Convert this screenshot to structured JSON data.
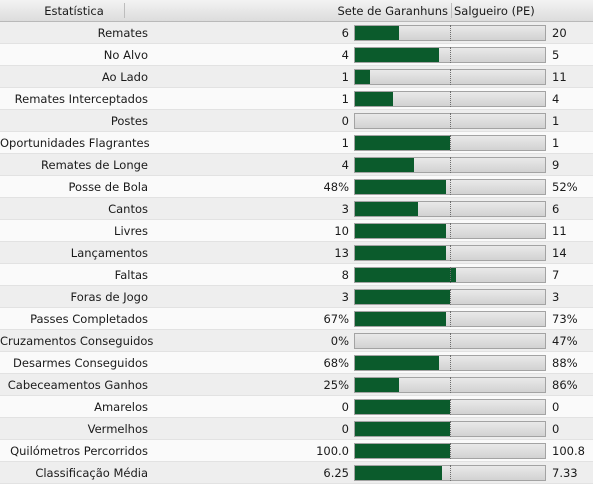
{
  "header": {
    "stat_label": "Estatística",
    "home_team": "Sete de Garanhuns",
    "away_team": "Salgueiro (PE)"
  },
  "colors": {
    "home_bar": "#0b5b2c",
    "away_bar": "#dcdcdc"
  },
  "stats": [
    {
      "label": "Remates",
      "home": "6",
      "away": "20",
      "home_share": 0.23
    },
    {
      "label": "No Alvo",
      "home": "4",
      "away": "5",
      "home_share": 0.44
    },
    {
      "label": "Ao Lado",
      "home": "1",
      "away": "11",
      "home_share": 0.08
    },
    {
      "label": "Remates Interceptados",
      "home": "1",
      "away": "4",
      "home_share": 0.2
    },
    {
      "label": "Postes",
      "home": "0",
      "away": "1",
      "home_share": 0.0
    },
    {
      "label": "Oportunidades Flagrantes",
      "home": "1",
      "away": "1",
      "home_share": 0.5
    },
    {
      "label": "Remates de Longe",
      "home": "4",
      "away": "9",
      "home_share": 0.31
    },
    {
      "label": "Posse de Bola",
      "home": "48%",
      "away": "52%",
      "home_share": 0.48
    },
    {
      "label": "Cantos",
      "home": "3",
      "away": "6",
      "home_share": 0.33
    },
    {
      "label": "Livres",
      "home": "10",
      "away": "11",
      "home_share": 0.48
    },
    {
      "label": "Lançamentos",
      "home": "13",
      "away": "14",
      "home_share": 0.48
    },
    {
      "label": "Faltas",
      "home": "8",
      "away": "7",
      "home_share": 0.53
    },
    {
      "label": "Foras de Jogo",
      "home": "3",
      "away": "3",
      "home_share": 0.5
    },
    {
      "label": "Passes Completados",
      "home": "67%",
      "away": "73%",
      "home_share": 0.48
    },
    {
      "label": "Cruzamentos Conseguidos",
      "home": "0%",
      "away": "47%",
      "home_share": 0.0
    },
    {
      "label": "Desarmes Conseguidos",
      "home": "68%",
      "away": "88%",
      "home_share": 0.44
    },
    {
      "label": "Cabeceamentos Ganhos",
      "home": "25%",
      "away": "86%",
      "home_share": 0.23
    },
    {
      "label": "Amarelos",
      "home": "0",
      "away": "0",
      "home_share": 0.5
    },
    {
      "label": "Vermelhos",
      "home": "0",
      "away": "0",
      "home_share": 0.5
    },
    {
      "label": "Quilómetros Percorridos",
      "home": "100.0",
      "away": "100.8",
      "home_share": 0.5
    },
    {
      "label": "Classificação Média",
      "home": "6.25",
      "away": "7.33",
      "home_share": 0.46
    }
  ]
}
